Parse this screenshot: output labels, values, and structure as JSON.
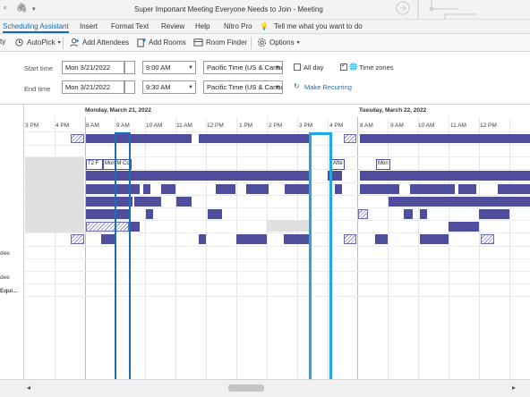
{
  "window": {
    "title": "Super Important Meeting Everyone Needs to Join  -  Meeting"
  },
  "tabs": [
    {
      "label": "Scheduling Assistant",
      "active": true
    },
    {
      "label": "Insert"
    },
    {
      "label": "Format Text"
    },
    {
      "label": "Review"
    },
    {
      "label": "Help"
    },
    {
      "label": "Nitro Pro"
    }
  ],
  "tell_me": "Tell me what you want to do",
  "ribbon": {
    "cut_label": "ty",
    "autopick": "AutoPick",
    "add_attendees": "Add Attendees",
    "add_rooms": "Add Rooms",
    "room_finder": "Room Finder",
    "options": "Options"
  },
  "form": {
    "start_label": "Start time",
    "end_label": "End time",
    "start_date": "Mon 3/21/2022",
    "start_time": "9:00 AM",
    "end_date": "Mon 3/21/2022",
    "end_time": "9:30 AM",
    "timezone": "Pacific Time (US & Canac",
    "all_day": "All day",
    "time_zones": "Time zones",
    "make_recurring": "Make Recurring"
  },
  "grid": {
    "days": [
      "Monday, March 21, 2022",
      "Tuesday, March 22, 2022"
    ],
    "hours": [
      "3 PM",
      "4 PM",
      "8 AM",
      "9 AM",
      "10 AM",
      "11 AM",
      "12 PM",
      "1 PM",
      "2 PM",
      "3 PM",
      "4 PM",
      "8 AM",
      "9 AM",
      "10 AM",
      "11 AM",
      "12 PM"
    ],
    "left_labels": [
      "dee",
      "dee",
      "Equi..."
    ],
    "tentative": [
      "T2 F",
      "Mon M Co",
      "Afte",
      "Mon"
    ]
  },
  "colors": {
    "busy": "#4e4e9c",
    "accent": "#0f6cbd",
    "highlight": "#22a8e0"
  }
}
